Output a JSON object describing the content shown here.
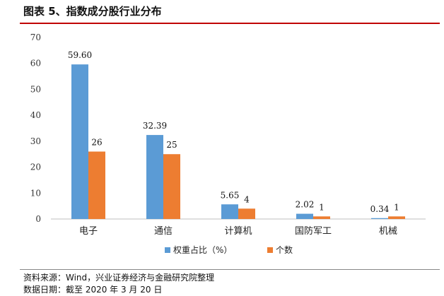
{
  "title": "图表 5、指数成分股行业分布",
  "chart_data": {
    "type": "bar",
    "categories": [
      "电子",
      "通信",
      "计算机",
      "国防军工",
      "机械"
    ],
    "series": [
      {
        "name": "权重占比（%）",
        "values": [
          59.6,
          32.39,
          5.65,
          2.02,
          0.34
        ],
        "labels": [
          "59.60",
          "32.39",
          "5.65",
          "2.02",
          "0.34"
        ],
        "color": "#5b9bd5"
      },
      {
        "name": "个数",
        "values": [
          26,
          25,
          4,
          1,
          1
        ],
        "labels": [
          "26",
          "25",
          "4",
          "1",
          "1"
        ],
        "color": "#ed7d31"
      }
    ],
    "ylim": [
      0,
      70
    ],
    "yticks": [
      0,
      10,
      20,
      30,
      40,
      50,
      60,
      70
    ],
    "legend_position": "bottom",
    "grid": false
  },
  "footer": {
    "source": "资料来源：Wind，兴业证券经济与金融研究院整理",
    "date": "数据日期：截至 2020 年 3 月 20 日"
  }
}
